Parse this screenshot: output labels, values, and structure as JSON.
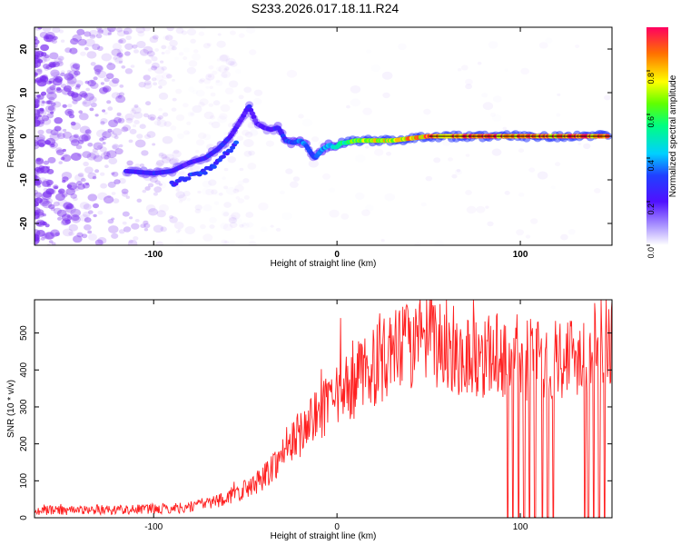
{
  "title": "S233.2026.017.18.11.R24",
  "colors": {
    "trace": "#ff2020",
    "background": "#ffffff",
    "axis": "#000000",
    "scatter": "#7a2df0"
  },
  "chart_data": [
    {
      "type": "heatmap",
      "xlabel": "Height of straight line (km)",
      "ylabel": "Frequency (Hz)",
      "xlim": [
        -165,
        150
      ],
      "ylim": [
        -25,
        25
      ],
      "xticks": [
        "-100",
        "0",
        "100"
      ],
      "yticks": [
        "-20",
        "-10",
        "0",
        "10",
        "20"
      ],
      "colorbar": {
        "label": "Normalized spectral amplitude",
        "ticks": [
          "0.0",
          "0.2",
          "0.4",
          "0.6",
          "0.8"
        ],
        "range": [
          0,
          1
        ]
      },
      "ridge": {
        "x": [
          -115,
          -100,
          -90,
          -80,
          -72,
          -65,
          -58,
          -52,
          -48,
          -44,
          -40,
          -36,
          -32,
          -28,
          -24,
          -20,
          -17,
          -14,
          -12,
          -10,
          -8,
          -6,
          -4,
          -2,
          0,
          2,
          5,
          10,
          15,
          20,
          30,
          40,
          50,
          60,
          70,
          80,
          90,
          100,
          110,
          120,
          130,
          140,
          148
        ],
        "y": [
          -8,
          -8.5,
          -8,
          -6,
          -5,
          -3,
          0,
          4,
          7,
          3,
          2,
          1.5,
          2,
          -1,
          -1.5,
          -1,
          -2,
          -4,
          -5,
          -4,
          -3,
          -2.5,
          -2,
          -2.5,
          -2.5,
          -1.5,
          -1.5,
          -1,
          -1,
          -1,
          -1,
          -0.5,
          0,
          0,
          0,
          0,
          0,
          0,
          0,
          0,
          0,
          0,
          0
        ],
        "amplitude": [
          0.25,
          0.3,
          0.25,
          0.22,
          0.25,
          0.3,
          0.25,
          0.2,
          0.25,
          0.2,
          0.25,
          0.2,
          0.3,
          0.3,
          0.35,
          0.4,
          0.35,
          0.3,
          0.3,
          0.35,
          0.4,
          0.45,
          0.5,
          0.45,
          0.5,
          0.55,
          0.6,
          0.65,
          0.7,
          0.75,
          0.8,
          0.85,
          0.9,
          0.95,
          0.95,
          0.95,
          0.9,
          0.95,
          0.95,
          0.9,
          0.95,
          0.95,
          0.9
        ]
      }
    },
    {
      "type": "line",
      "xlabel": "Height of straight line (km)",
      "ylabel": "SNR (10 * v/v)",
      "xlim": [
        -165,
        150
      ],
      "ylim": [
        0,
        590
      ],
      "xticks": [
        "-100",
        "0",
        "100"
      ],
      "yticks": [
        "0",
        "100",
        "200",
        "300",
        "400",
        "500"
      ],
      "envelope": {
        "x": [
          -165,
          -120,
          -90,
          -80,
          -70,
          -60,
          -50,
          -40,
          -30,
          -20,
          -10,
          0,
          10,
          20,
          30,
          40,
          50,
          60,
          70,
          80,
          90,
          100,
          110,
          120,
          130,
          140,
          150
        ],
        "y": [
          20,
          22,
          25,
          30,
          40,
          55,
          75,
          110,
          170,
          230,
          280,
          320,
          370,
          410,
          440,
          470,
          480,
          460,
          440,
          440,
          440,
          430,
          430,
          440,
          440,
          460,
          480
        ]
      },
      "dropouts_x": [
        93,
        96,
        99,
        102,
        105,
        108,
        112,
        115,
        118,
        135,
        137,
        140,
        143,
        146
      ]
    }
  ]
}
